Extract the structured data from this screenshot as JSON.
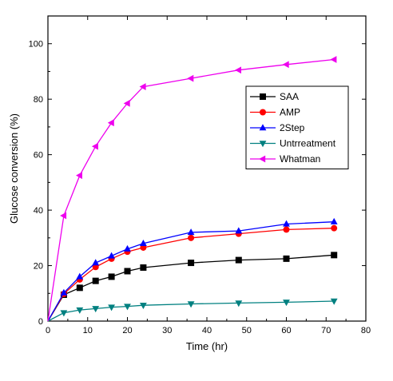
{
  "chart_data": {
    "type": "line",
    "xlabel": "Time (hr)",
    "ylabel": "Glucose conversion (%)",
    "xlim": [
      0,
      80
    ],
    "ylim": [
      0,
      110
    ],
    "xticks": [
      0,
      10,
      20,
      30,
      40,
      50,
      60,
      70,
      80
    ],
    "yticks": [
      0,
      20,
      40,
      60,
      80,
      100
    ],
    "grid": false,
    "legend_position": "top-right",
    "series": [
      {
        "name": "SAA",
        "color": "#000000",
        "marker": "square",
        "x": [
          0,
          4,
          8,
          12,
          16,
          20,
          24,
          36,
          48,
          60,
          72
        ],
        "y": [
          0,
          9.5,
          12,
          14.5,
          16,
          18,
          19.3,
          21,
          22,
          22.5,
          23.8
        ]
      },
      {
        "name": "AMP",
        "color": "#ff0000",
        "marker": "circle",
        "x": [
          0,
          4,
          8,
          12,
          16,
          20,
          24,
          36,
          48,
          60,
          72
        ],
        "y": [
          0,
          9.8,
          15,
          19.5,
          22.5,
          25,
          26.5,
          30,
          31.5,
          33,
          33.5
        ]
      },
      {
        "name": "2Step",
        "color": "#0000ff",
        "marker": "triangle-up",
        "x": [
          0,
          4,
          8,
          12,
          16,
          20,
          24,
          36,
          48,
          60,
          72
        ],
        "y": [
          0,
          10.2,
          16,
          21,
          23.5,
          26,
          28,
          32,
          32.5,
          35,
          35.8
        ]
      },
      {
        "name": "Untrreatment",
        "color": "#008080",
        "marker": "triangle-down",
        "x": [
          0,
          4,
          8,
          12,
          16,
          20,
          24,
          36,
          48,
          60,
          72
        ],
        "y": [
          0,
          3,
          4,
          4.5,
          5,
          5.3,
          5.7,
          6.2,
          6.5,
          6.8,
          7.2
        ]
      },
      {
        "name": "Whatman",
        "color": "#ee00ee",
        "marker": "triangle-left",
        "x": [
          0,
          4,
          8,
          12,
          16,
          20,
          24,
          36,
          48,
          60,
          72
        ],
        "y": [
          0,
          38,
          52.5,
          63,
          71.5,
          78.5,
          84.5,
          87.5,
          90.5,
          92.5,
          94.3
        ]
      }
    ]
  }
}
